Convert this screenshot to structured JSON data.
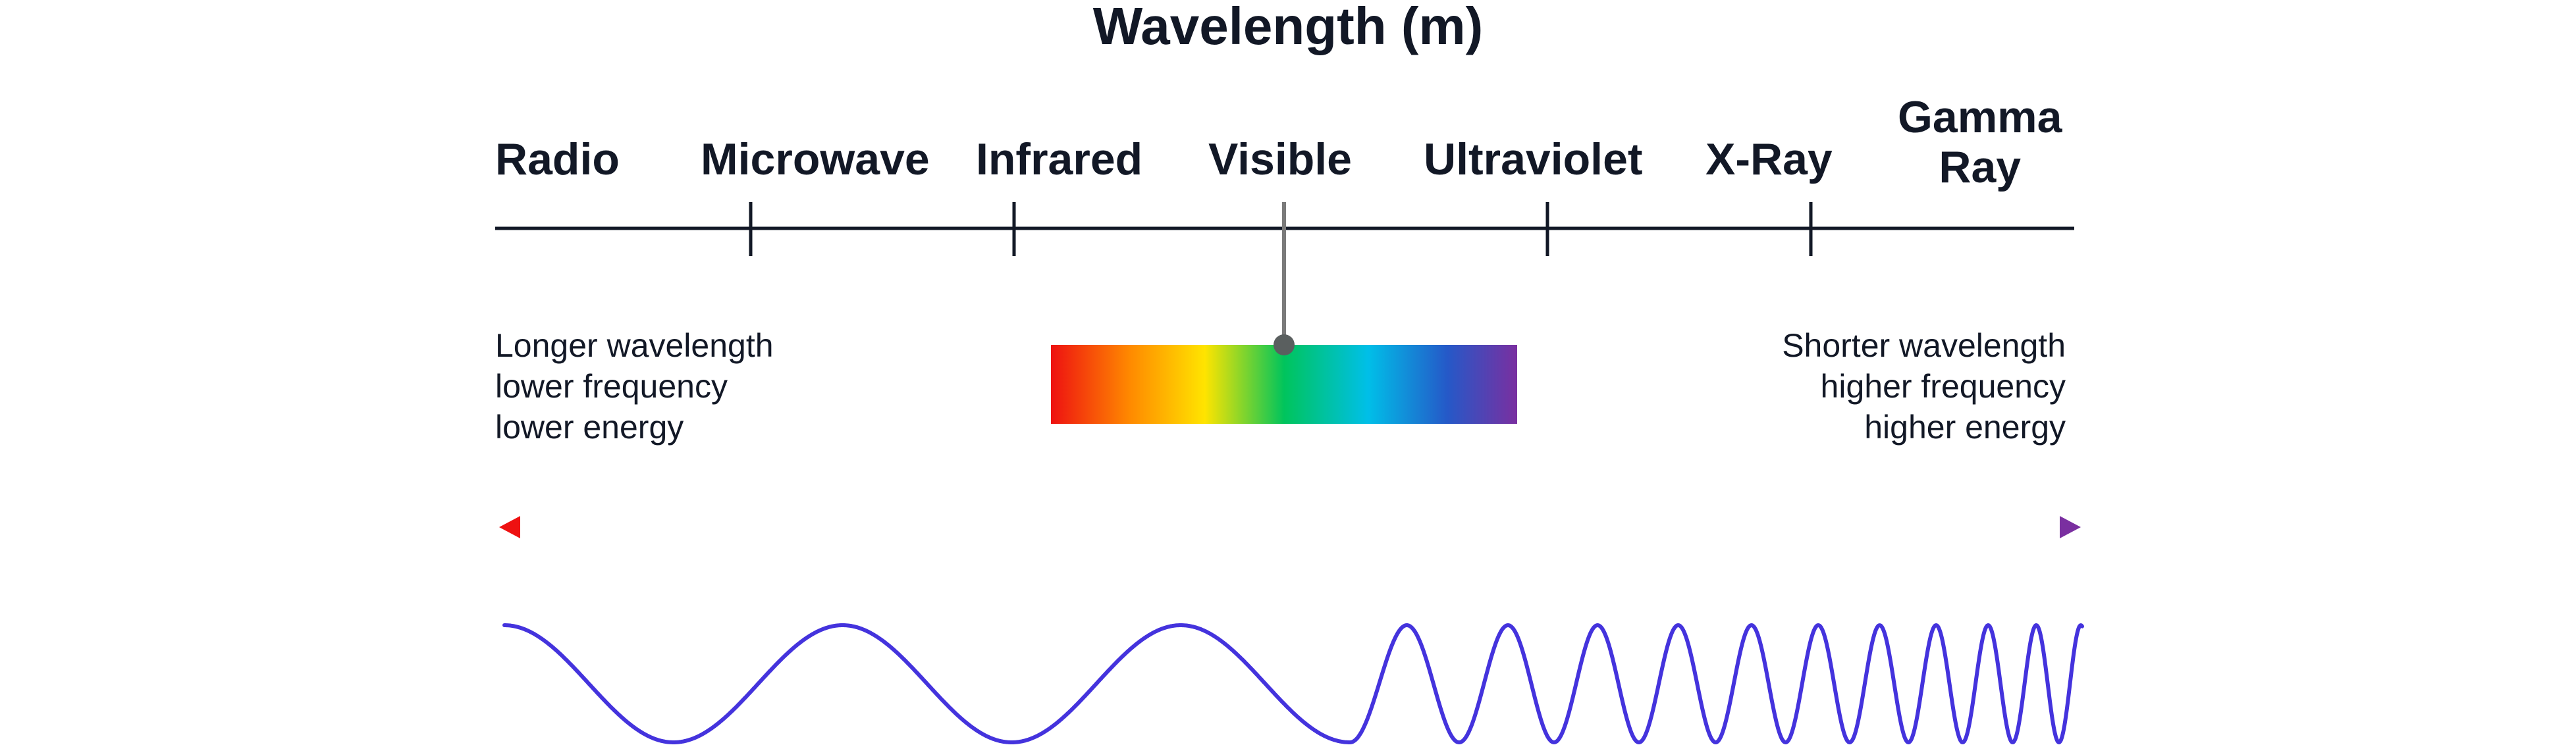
{
  "title": "Wavelength (m)",
  "bands": [
    {
      "label": "Radio"
    },
    {
      "label": "Microwave"
    },
    {
      "label": "Infrared"
    },
    {
      "label": "Visible"
    },
    {
      "label": "Ultraviolet"
    },
    {
      "label": "X-Ray"
    },
    {
      "label_line1": "Gamma",
      "label_line2": "Ray"
    }
  ],
  "left_note": [
    "Longer wavelength",
    "lower frequency",
    "lower energy"
  ],
  "right_note": [
    "Shorter wavelength",
    "higher frequency",
    "higher energy"
  ],
  "colors": {
    "text": "#121826",
    "axis": "#121826",
    "pointer": "#7a7a7a",
    "wave": "#4433dd",
    "spectrum": [
      "#ee1111",
      "#ff8800",
      "#ffe000",
      "#00c060",
      "#00bfe8",
      "#2255cc",
      "#7a2fa0"
    ]
  }
}
